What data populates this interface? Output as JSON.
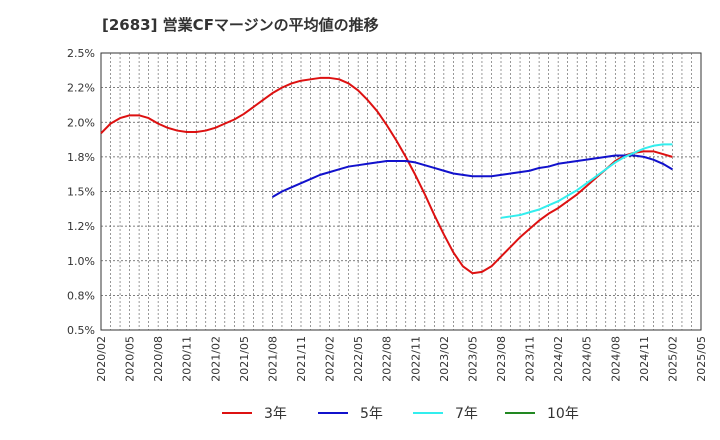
{
  "title": "[2683]  営業CFマージンの平均値の推移",
  "chart_data": {
    "type": "line",
    "title": "[2683]  営業CFマージンの平均値の推移",
    "xlabel": "",
    "ylabel": "",
    "ylim": [
      0.5,
      2.5
    ],
    "yticks": [
      "2.5%",
      "2.2%",
      "2.0%",
      "1.8%",
      "1.5%",
      "1.2%",
      "1.0%",
      "0.8%",
      "0.5%"
    ],
    "ytick_values": [
      2.5,
      2.25,
      2.0,
      1.75,
      1.5,
      1.25,
      1.0,
      0.75,
      0.5
    ],
    "xticks": [
      "2020/02",
      "2020/05",
      "2020/08",
      "2020/11",
      "2021/02",
      "2021/05",
      "2021/08",
      "2021/11",
      "2022/02",
      "2022/05",
      "2022/08",
      "2022/11",
      "2023/02",
      "2023/05",
      "2023/08",
      "2023/11",
      "2024/02",
      "2024/05",
      "2024/08",
      "2024/11",
      "2025/02",
      "2025/05"
    ],
    "grid": true,
    "legend_position": "bottom",
    "series": [
      {
        "name": "3年",
        "color": "#dd1111",
        "x": [
          "2020/02",
          "2020/03",
          "2020/04",
          "2020/05",
          "2020/06",
          "2020/07",
          "2020/08",
          "2020/09",
          "2020/10",
          "2020/11",
          "2020/12",
          "2021/01",
          "2021/02",
          "2021/03",
          "2021/04",
          "2021/05",
          "2021/06",
          "2021/07",
          "2021/08",
          "2021/09",
          "2021/10",
          "2021/11",
          "2021/12",
          "2022/01",
          "2022/02",
          "2022/03",
          "2022/04",
          "2022/05",
          "2022/06",
          "2022/07",
          "2022/08",
          "2022/09",
          "2022/10",
          "2022/11",
          "2022/12",
          "2023/01",
          "2023/02",
          "2023/03",
          "2023/04",
          "2023/05",
          "2023/06",
          "2023/07",
          "2023/08",
          "2023/09",
          "2023/10",
          "2023/11",
          "2023/12",
          "2024/01",
          "2024/02",
          "2024/03",
          "2024/04",
          "2024/05",
          "2024/06",
          "2024/07",
          "2024/08",
          "2024/09",
          "2024/10",
          "2024/11",
          "2024/12",
          "2025/01",
          "2025/02"
        ],
        "values": [
          1.92,
          1.99,
          2.03,
          2.05,
          2.05,
          2.03,
          1.99,
          1.96,
          1.94,
          1.93,
          1.93,
          1.94,
          1.96,
          1.99,
          2.02,
          2.06,
          2.11,
          2.16,
          2.21,
          2.25,
          2.28,
          2.3,
          2.31,
          2.32,
          2.32,
          2.31,
          2.28,
          2.23,
          2.16,
          2.08,
          1.98,
          1.87,
          1.75,
          1.62,
          1.48,
          1.33,
          1.19,
          1.06,
          0.96,
          0.91,
          0.92,
          0.96,
          1.03,
          1.1,
          1.17,
          1.23,
          1.29,
          1.34,
          1.38,
          1.43,
          1.48,
          1.54,
          1.6,
          1.66,
          1.72,
          1.76,
          1.78,
          1.79,
          1.79,
          1.77,
          1.75
        ]
      },
      {
        "name": "5年",
        "color": "#1111cc",
        "x": [
          "2021/08",
          "2021/09",
          "2021/10",
          "2021/11",
          "2021/12",
          "2022/01",
          "2022/02",
          "2022/03",
          "2022/04",
          "2022/05",
          "2022/06",
          "2022/07",
          "2022/08",
          "2022/09",
          "2022/10",
          "2022/11",
          "2022/12",
          "2023/01",
          "2023/02",
          "2023/03",
          "2023/04",
          "2023/05",
          "2023/06",
          "2023/07",
          "2023/08",
          "2023/09",
          "2023/10",
          "2023/11",
          "2023/12",
          "2024/01",
          "2024/02",
          "2024/03",
          "2024/04",
          "2024/05",
          "2024/06",
          "2024/07",
          "2024/08",
          "2024/09",
          "2024/10",
          "2024/11",
          "2024/12",
          "2025/01",
          "2025/02"
        ],
        "values": [
          1.46,
          1.5,
          1.53,
          1.56,
          1.59,
          1.62,
          1.64,
          1.66,
          1.68,
          1.69,
          1.7,
          1.71,
          1.72,
          1.72,
          1.72,
          1.71,
          1.69,
          1.67,
          1.65,
          1.63,
          1.62,
          1.61,
          1.61,
          1.61,
          1.62,
          1.63,
          1.64,
          1.65,
          1.67,
          1.68,
          1.7,
          1.71,
          1.72,
          1.73,
          1.74,
          1.75,
          1.76,
          1.76,
          1.76,
          1.75,
          1.73,
          1.7,
          1.66
        ]
      },
      {
        "name": "7年",
        "color": "#33eeee",
        "x": [
          "2023/08",
          "2023/09",
          "2023/10",
          "2023/11",
          "2023/12",
          "2024/01",
          "2024/02",
          "2024/03",
          "2024/04",
          "2024/05",
          "2024/06",
          "2024/07",
          "2024/08",
          "2024/09",
          "2024/10",
          "2024/11",
          "2024/12",
          "2025/01",
          "2025/02"
        ],
        "values": [
          1.31,
          1.32,
          1.33,
          1.35,
          1.37,
          1.4,
          1.43,
          1.47,
          1.51,
          1.56,
          1.61,
          1.66,
          1.71,
          1.75,
          1.78,
          1.81,
          1.83,
          1.84,
          1.84
        ]
      },
      {
        "name": "10年",
        "color": "#228822",
        "x": [],
        "values": []
      }
    ]
  }
}
